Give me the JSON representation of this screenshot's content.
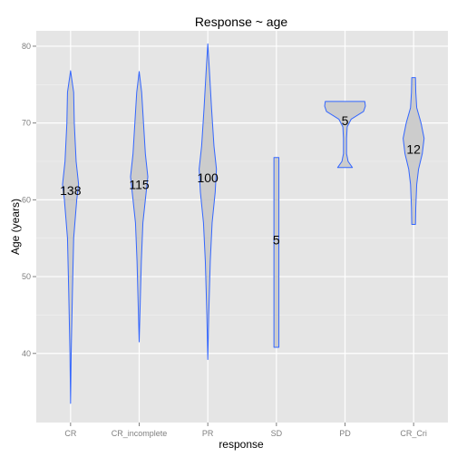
{
  "chart_data": {
    "type": "violin",
    "title": "Response ~ age",
    "xlabel": "response",
    "ylabel": "Age (years)",
    "ylim": [
      31,
      82
    ],
    "yticks": [
      40,
      50,
      60,
      70,
      80
    ],
    "categories": [
      "CR",
      "CR_incomplete",
      "PR",
      "SD",
      "PD",
      "CR_Cri"
    ],
    "colors": {
      "panel": "#e5e5e5",
      "grid": "#ffffff",
      "fill": "#cccccc",
      "outline": "#3366ff"
    },
    "violins": [
      {
        "category": "CR",
        "count_label": "138",
        "min": 33.5,
        "max": 76.8,
        "label_y": 61.2,
        "profile": [
          [
            33.5,
            0
          ],
          [
            40,
            0.02
          ],
          [
            48,
            0.06
          ],
          [
            55,
            0.1
          ],
          [
            60,
            0.2
          ],
          [
            62,
            0.26
          ],
          [
            65,
            0.18
          ],
          [
            70,
            0.12
          ],
          [
            74,
            0.1
          ],
          [
            76.8,
            0
          ]
        ]
      },
      {
        "category": "CR_incomplete",
        "count_label": "115",
        "min": 41.5,
        "max": 76.7,
        "label_y": 62.0,
        "profile": [
          [
            41.5,
            0
          ],
          [
            46,
            0.03
          ],
          [
            52,
            0.07
          ],
          [
            57,
            0.12
          ],
          [
            60,
            0.2
          ],
          [
            63,
            0.28
          ],
          [
            66,
            0.2
          ],
          [
            70,
            0.14
          ],
          [
            74,
            0.08
          ],
          [
            76.7,
            0
          ]
        ]
      },
      {
        "category": "PR",
        "count_label": "100",
        "min": 39.2,
        "max": 80.3,
        "label_y": 62.9,
        "profile": [
          [
            39.2,
            0
          ],
          [
            45,
            0.03
          ],
          [
            52,
            0.08
          ],
          [
            57,
            0.14
          ],
          [
            61,
            0.24
          ],
          [
            64,
            0.28
          ],
          [
            67,
            0.2
          ],
          [
            72,
            0.12
          ],
          [
            77,
            0.05
          ],
          [
            80.3,
            0
          ]
        ]
      },
      {
        "category": "SD",
        "count_label": "5",
        "min": 40.8,
        "max": 65.5,
        "label_y": 54.8,
        "profile": [
          [
            40.8,
            0.08
          ],
          [
            65.5,
            0.08
          ]
        ]
      },
      {
        "category": "PD",
        "count_label": "5",
        "min": 64.2,
        "max": 72.8,
        "label_y": 70.3,
        "profile": [
          [
            64.2,
            0.24
          ],
          [
            65,
            0.1
          ],
          [
            66,
            0.05
          ],
          [
            68,
            0.05
          ],
          [
            69.5,
            0.07
          ],
          [
            70.5,
            0.2
          ],
          [
            71.5,
            0.6
          ],
          [
            72.2,
            0.66
          ],
          [
            72.8,
            0.64
          ]
        ]
      },
      {
        "category": "CR_Cri",
        "count_label": "12",
        "min": 56.8,
        "max": 75.9,
        "label_y": 66.6,
        "profile": [
          [
            56.8,
            0.06
          ],
          [
            59,
            0.07
          ],
          [
            62,
            0.1
          ],
          [
            64,
            0.16
          ],
          [
            66,
            0.28
          ],
          [
            68,
            0.34
          ],
          [
            70,
            0.24
          ],
          [
            72,
            0.1
          ],
          [
            74,
            0.07
          ],
          [
            75.9,
            0.06
          ]
        ]
      }
    ]
  }
}
